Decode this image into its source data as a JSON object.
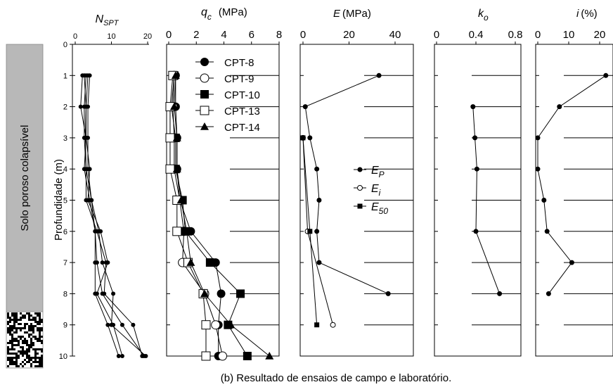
{
  "caption": "(b) Resultado de ensaios de campo e laboratório.",
  "depth_axis_label": "Profundidade (m)",
  "layer_label": "Solo poroso colapsível",
  "colors": {
    "layer_fill": "#b8b8b8",
    "line": "#000000",
    "background": "#ffffff"
  },
  "chart_data": [
    {
      "type": "line",
      "title": "N_SPT",
      "title_main": "N",
      "title_sub": "SPT",
      "xlim": [
        0,
        20
      ],
      "xticks": [
        "0",
        "10",
        "20"
      ],
      "ylim": [
        0,
        10
      ],
      "yticks": [
        "0",
        "1",
        "2",
        "3",
        "4",
        "5",
        "6",
        "7",
        "8",
        "9",
        "10"
      ],
      "ylabel": "Profundidade (m)",
      "series": [
        {
          "marker": "filled-circle",
          "x": [
            2.5,
            3.0,
            2.8,
            3.0,
            4.5,
            5.5,
            6.0,
            7.5,
            13.0,
            19.0
          ],
          "y": [
            1,
            2,
            3,
            4,
            5,
            6,
            7,
            8,
            9,
            10
          ]
        },
        {
          "marker": "filled-circle",
          "x": [
            3.0,
            2.5,
            2.5,
            3.0,
            3.0,
            6.0,
            8.5,
            8.0,
            16.0,
            18.5
          ],
          "y": [
            1,
            2,
            3,
            4,
            5,
            6,
            7,
            8,
            9,
            10
          ]
        },
        {
          "marker": "filled-circle",
          "x": [
            2.0,
            1.5,
            3.0,
            4.0,
            3.5,
            7.0,
            9.0,
            6.0,
            10.5,
            13.0
          ],
          "y": [
            1,
            2,
            3,
            4,
            5,
            6,
            7,
            8,
            9,
            10
          ]
        },
        {
          "marker": "filled-circle",
          "x": [
            3.5,
            3.0,
            3.0,
            2.5,
            4.0,
            5.5,
            5.5,
            5.5,
            9.0,
            12.0
          ],
          "y": [
            1,
            2,
            3,
            4,
            5,
            6,
            7,
            8,
            9,
            10
          ]
        },
        {
          "marker": "filled-circle",
          "x": [
            4.0,
            3.5,
            3.5,
            3.5,
            4.5,
            6.5,
            7.5,
            10.5,
            10.0,
            19.5
          ],
          "y": [
            1,
            2,
            3,
            4,
            5,
            6,
            7,
            8,
            9,
            10
          ]
        }
      ]
    },
    {
      "type": "line",
      "title": "qc (MPa)",
      "title_main": "q",
      "title_sub": "c",
      "title_unit": "(MPa)",
      "xlim": [
        0,
        8
      ],
      "xticks": [
        "0",
        "2",
        "4",
        "6",
        "8"
      ],
      "ylim": [
        0,
        10
      ],
      "legend_position": "top-right",
      "series": [
        {
          "name": "CPT-8",
          "marker": "filled-circle",
          "x": [
            0.5,
            0.5,
            0.6,
            0.6,
            0.8,
            1.6,
            3.4,
            3.8,
            3.6,
            3.6
          ],
          "y": [
            1,
            2,
            3,
            4,
            5,
            6,
            7,
            8,
            9,
            10
          ]
        },
        {
          "name": "CPT-9",
          "marker": "open-circle",
          "x": [
            0.4,
            0.3,
            0.4,
            0.4,
            0.8,
            1.1,
            1.0,
            2.6,
            3.4,
            3.9
          ],
          "y": [
            1,
            2,
            3,
            4,
            5,
            6,
            7,
            8,
            9,
            10
          ]
        },
        {
          "name": "CPT-10",
          "marker": "filled-square",
          "x": [
            0.4,
            0.2,
            0.5,
            0.5,
            1.0,
            1.2,
            3.0,
            5.2,
            4.3,
            5.7
          ],
          "y": [
            1,
            2,
            3,
            4,
            5,
            6,
            7,
            8,
            9,
            10
          ]
        },
        {
          "name": "CPT-13",
          "marker": "open-square",
          "x": [
            0.3,
            0.1,
            0.1,
            0.1,
            0.6,
            0.6,
            1.4,
            2.5,
            2.7,
            2.7
          ],
          "y": [
            1,
            2,
            3,
            4,
            5,
            6,
            7,
            8,
            9,
            10
          ]
        },
        {
          "name": "CPT-14",
          "marker": "filled-triangle",
          "x": [
            0.5,
            0.4,
            0.6,
            0.6,
            0.9,
            1.3,
            1.6,
            2.6,
            4.5,
            7.3
          ],
          "y": [
            1,
            2,
            3,
            4,
            5,
            6,
            7,
            8,
            9,
            10
          ]
        }
      ]
    },
    {
      "type": "line",
      "title": "E (MPa)",
      "title_main": "E",
      "title_unit": "(MPa)",
      "xlim": [
        0,
        50
      ],
      "xticks": [
        "0",
        "20",
        "40"
      ],
      "ylim": [
        0,
        10
      ],
      "legend_position": "center",
      "series": [
        {
          "name": "E_P",
          "name_main": "E",
          "name_sub": "P",
          "marker": "filled-circle",
          "x": [
            33,
            1,
            3,
            6,
            7,
            6,
            7,
            37
          ],
          "y": [
            1,
            2,
            3,
            4,
            5,
            6,
            7,
            8
          ]
        },
        {
          "name": "E_i",
          "name_main": "E",
          "name_sub": "i",
          "marker": "open-circle",
          "x": [
            0,
            2,
            13
          ],
          "y": [
            3,
            6,
            9
          ]
        },
        {
          "name": "E_50",
          "name_main": "E",
          "name_sub": "50",
          "marker": "filled-square",
          "x": [
            0,
            3,
            6
          ],
          "y": [
            3,
            6,
            9
          ]
        }
      ]
    },
    {
      "type": "line",
      "title": "k_o",
      "title_main": "k",
      "title_sub": "o",
      "xlim": [
        0,
        1.0
      ],
      "xticks": [
        "0",
        "0.4",
        "0.8"
      ],
      "ylim": [
        0,
        10
      ],
      "series": [
        {
          "marker": "filled-circle",
          "x": [
            0.37,
            0.39,
            0.41,
            0.4,
            0.64
          ],
          "y": [
            2,
            3,
            4,
            6,
            8
          ]
        }
      ]
    },
    {
      "type": "line",
      "title": "i (%)",
      "title_main": "i",
      "title_unit": "(%)",
      "xlim": [
        0,
        22
      ],
      "xticks": [
        "0",
        "10",
        "20"
      ],
      "ylim": [
        0,
        10
      ],
      "series": [
        {
          "marker": "filled-circle",
          "x": [
            22,
            7,
            0,
            0,
            2,
            3,
            11,
            3.5
          ],
          "y": [
            1,
            2,
            3,
            4,
            5,
            6,
            7,
            8
          ]
        }
      ]
    }
  ]
}
